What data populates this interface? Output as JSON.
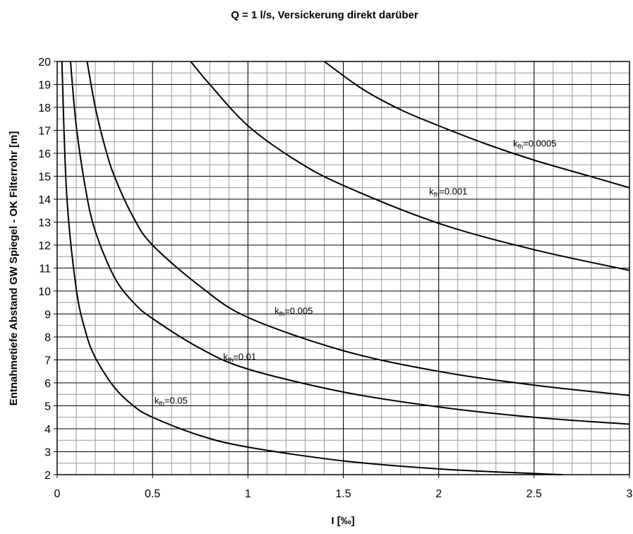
{
  "chart_data": {
    "type": "line",
    "title": "Q = 1 l/s, Versickerung direkt darüber",
    "xlabel": "I [‰]",
    "ylabel": "Entnahmetiefe Abstand GW Spiegel - OK Filterrohr [m]",
    "xlim": [
      0,
      3
    ],
    "ylim": [
      2,
      20
    ],
    "xticks": [
      0,
      0.5,
      1,
      1.5,
      2,
      2.5,
      3
    ],
    "yticks": [
      2,
      3,
      4,
      5,
      6,
      7,
      8,
      9,
      10,
      11,
      12,
      13,
      14,
      15,
      16,
      17,
      18,
      19,
      20
    ],
    "grid": true,
    "minor_grid_step": [
      0.1,
      0.5
    ],
    "series": [
      {
        "name": "kfh=0.05",
        "color": "#000000",
        "x": [
          0.025,
          0.05,
          0.1,
          0.15,
          0.2,
          0.3,
          0.4,
          0.5,
          0.75,
          1,
          1.5,
          2,
          2.5,
          2.65
        ],
        "values": [
          20,
          14.2,
          10.1,
          8.2,
          7.1,
          5.8,
          5.0,
          4.5,
          3.7,
          3.2,
          2.6,
          2.25,
          2.05,
          2.0
        ]
      },
      {
        "name": "kfh=0.01",
        "color": "#000000",
        "x": [
          0.07,
          0.1,
          0.15,
          0.2,
          0.3,
          0.4,
          0.5,
          0.75,
          1,
          1.5,
          2,
          2.5,
          3
        ],
        "values": [
          20,
          17.2,
          14.4,
          12.6,
          10.6,
          9.5,
          8.8,
          7.5,
          6.6,
          5.6,
          4.95,
          4.5,
          4.2
        ]
      },
      {
        "name": "kfh=0.005",
        "color": "#000000",
        "x": [
          0.157,
          0.2,
          0.25,
          0.3,
          0.4,
          0.5,
          0.75,
          1,
          1.5,
          2,
          2.5,
          3
        ],
        "values": [
          20,
          18.0,
          16.3,
          15.0,
          13.2,
          12.0,
          10.2,
          8.85,
          7.4,
          6.5,
          5.9,
          5.45
        ]
      },
      {
        "name": "kfh=0.001",
        "color": "#000000",
        "x": [
          0.7,
          0.8,
          1,
          1.25,
          1.5,
          2,
          2.5,
          3
        ],
        "values": [
          20,
          19.0,
          17.2,
          15.7,
          14.6,
          12.95,
          11.8,
          10.9
        ]
      },
      {
        "name": "kfh=0.0005",
        "color": "#000000",
        "x": [
          1.4,
          1.6,
          1.8,
          2,
          2.25,
          2.5,
          2.75,
          3
        ],
        "values": [
          20,
          18.8,
          17.9,
          17.2,
          16.4,
          15.7,
          15.1,
          14.5
        ]
      }
    ]
  }
}
